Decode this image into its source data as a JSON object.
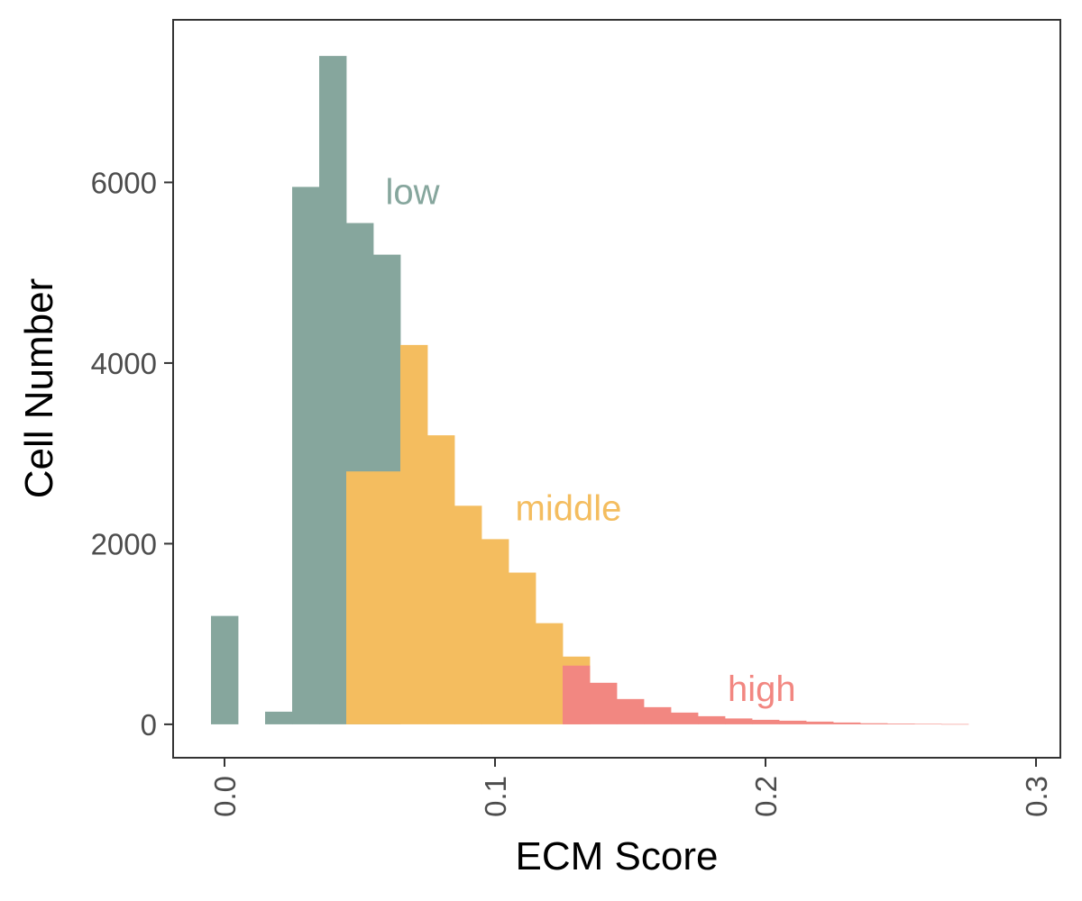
{
  "chart_data": {
    "type": "bar",
    "xlabel": "ECM Score",
    "ylabel": "Cell Number",
    "xlim": [
      -0.019,
      0.309
    ],
    "ylim": [
      -370,
      7800
    ],
    "bin_width": 0.01,
    "x_ticks": [
      {
        "value": 0.0,
        "label": "0.0"
      },
      {
        "value": 0.1,
        "label": "0.1"
      },
      {
        "value": 0.2,
        "label": "0.2"
      },
      {
        "value": 0.3,
        "label": "0.3"
      }
    ],
    "y_ticks": [
      {
        "value": 0,
        "label": "0"
      },
      {
        "value": 2000,
        "label": "2000"
      },
      {
        "value": 4000,
        "label": "4000"
      },
      {
        "value": 6000,
        "label": "6000"
      }
    ],
    "series": [
      {
        "name": "low",
        "color": "#86a69d",
        "bins": [
          {
            "x": 0.0,
            "y": 1200
          },
          {
            "x": 0.02,
            "y": 140
          },
          {
            "x": 0.03,
            "y": 5950
          },
          {
            "x": 0.04,
            "y": 7400
          },
          {
            "x": 0.05,
            "y": 5550
          },
          {
            "x": 0.06,
            "y": 5200
          }
        ]
      },
      {
        "name": "middle",
        "color": "#f4bd5f",
        "bins": [
          {
            "x": 0.05,
            "y": 2800
          },
          {
            "x": 0.06,
            "y": 2800
          },
          {
            "x": 0.07,
            "y": 4200
          },
          {
            "x": 0.08,
            "y": 3200
          },
          {
            "x": 0.09,
            "y": 2420
          },
          {
            "x": 0.1,
            "y": 2050
          },
          {
            "x": 0.11,
            "y": 1680
          },
          {
            "x": 0.12,
            "y": 1120
          },
          {
            "x": 0.13,
            "y": 750
          }
        ]
      },
      {
        "name": "high",
        "color": "#f28781",
        "bins": [
          {
            "x": 0.13,
            "y": 650
          },
          {
            "x": 0.14,
            "y": 460
          },
          {
            "x": 0.15,
            "y": 280
          },
          {
            "x": 0.16,
            "y": 190
          },
          {
            "x": 0.17,
            "y": 130
          },
          {
            "x": 0.18,
            "y": 90
          },
          {
            "x": 0.19,
            "y": 65
          },
          {
            "x": 0.2,
            "y": 50
          },
          {
            "x": 0.21,
            "y": 40
          },
          {
            "x": 0.22,
            "y": 30
          },
          {
            "x": 0.23,
            "y": 20
          },
          {
            "x": 0.24,
            "y": 12
          },
          {
            "x": 0.25,
            "y": 8
          },
          {
            "x": 0.26,
            "y": 5
          },
          {
            "x": 0.27,
            "y": 3
          }
        ]
      }
    ],
    "annotations": [
      {
        "text": "low",
        "x": 0.0595,
        "y": 5900,
        "color": "#86a69d"
      },
      {
        "text": "middle",
        "x": 0.1075,
        "y": 2400,
        "color": "#f4bd5f"
      },
      {
        "text": "high",
        "x": 0.186,
        "y": 400,
        "color": "#f28781"
      }
    ],
    "grid": false,
    "legend": "none"
  }
}
